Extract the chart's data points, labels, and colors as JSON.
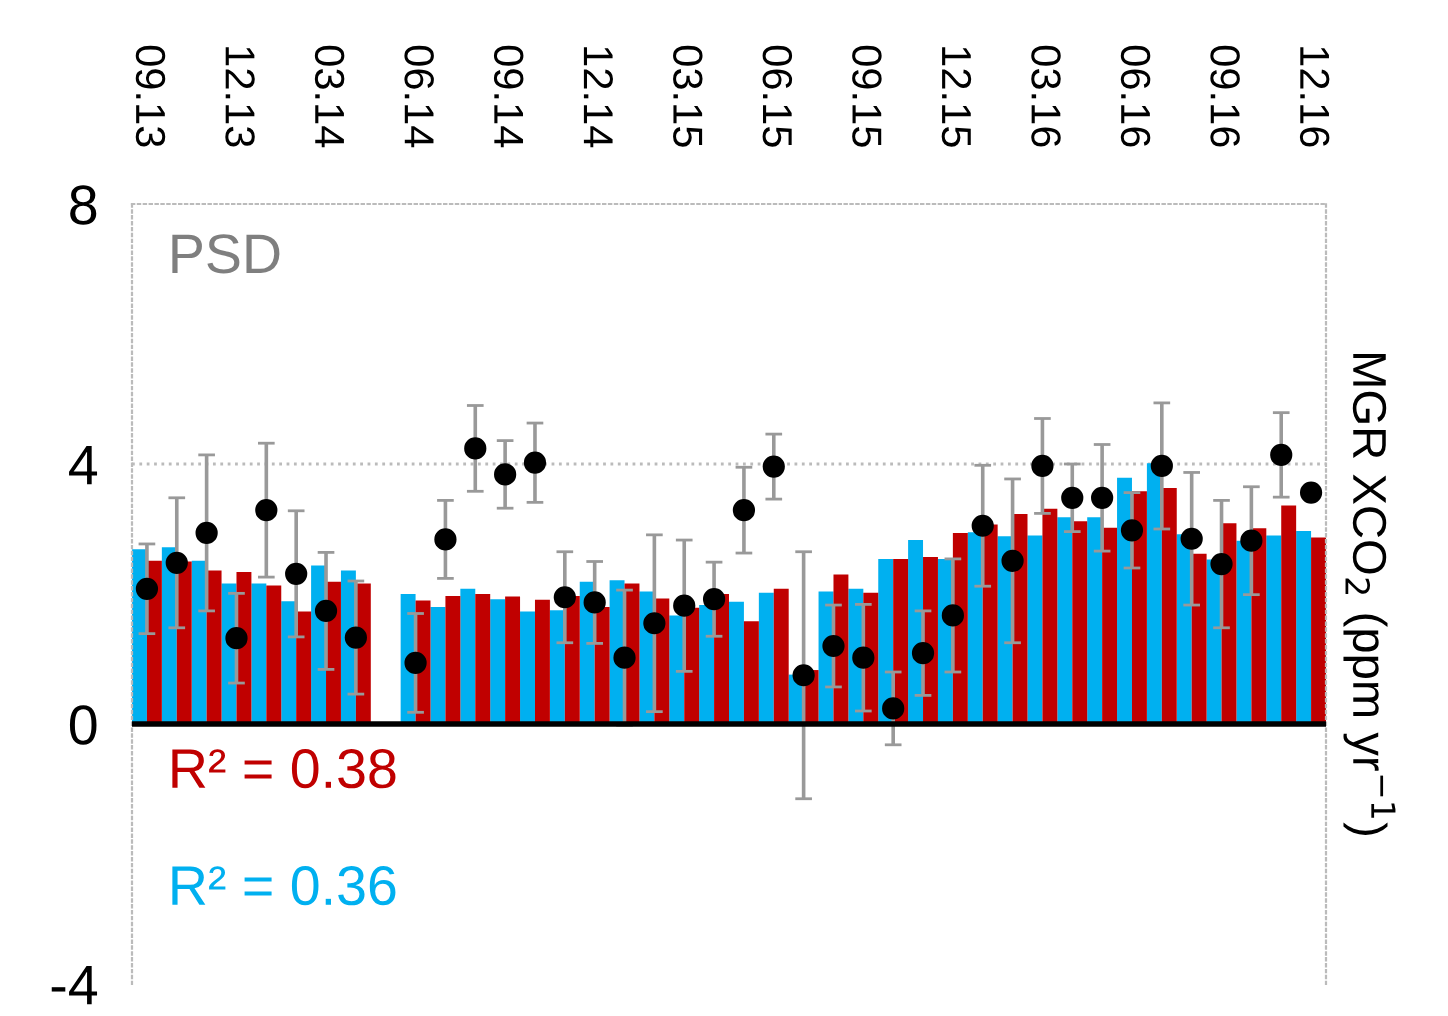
{
  "chart_data": {
    "type": "bar",
    "ylabel": "MGR XCO$_{2}$ (ppm yr$^{−1}$)",
    "categories": [
      "09.13",
      null,
      null,
      "12.13",
      null,
      null,
      "03.14",
      null,
      null,
      "06.14",
      null,
      null,
      "09.14",
      null,
      null,
      "12.14",
      null,
      null,
      "03.15",
      null,
      null,
      "06.15",
      null,
      null,
      "09.15",
      null,
      null,
      "12.15",
      null,
      null,
      "03.16",
      null,
      null,
      "06.16",
      null,
      null,
      "09.16",
      null,
      null,
      "12.16"
    ],
    "series": [
      {
        "color": "#00b0f0",
        "values": [
          2.69,
          2.72,
          2.51,
          2.16,
          2.16,
          1.89,
          2.44,
          2.36,
          null,
          2.0,
          1.8,
          2.08,
          1.92,
          1.73,
          1.75,
          2.19,
          2.21,
          2.04,
          1.67,
          1.83,
          1.88,
          2.02,
          0.76,
          2.04,
          2.08,
          2.54,
          2.83,
          2.54,
          2.95,
          2.89,
          2.9,
          3.18,
          3.18,
          3.79,
          4.01,
          2.92,
          2.53,
          2.82,
          2.9,
          2.97
        ]
      },
      {
        "color": "#c00000",
        "values": [
          2.51,
          2.5,
          2.36,
          2.34,
          2.13,
          1.73,
          2.19,
          2.16,
          null,
          1.9,
          1.97,
          2.0,
          1.96,
          1.91,
          1.97,
          1.8,
          2.16,
          1.93,
          1.79,
          2.0,
          1.58,
          2.08,
          0.83,
          2.3,
          2.02,
          2.54,
          2.57,
          2.94,
          3.07,
          3.23,
          3.31,
          3.12,
          3.02,
          3.58,
          3.63,
          2.62,
          3.09,
          3.01,
          3.36,
          2.87
        ]
      },
      {
        "type": "scatter",
        "color": "#000000",
        "marker": "circle",
        "values": [
          2.08,
          2.48,
          2.94,
          1.32,
          3.29,
          2.31,
          1.74,
          1.33,
          null,
          0.94,
          2.84,
          4.24,
          3.84,
          4.02,
          1.95,
          1.87,
          1.02,
          1.55,
          1.82,
          1.92,
          3.29,
          3.96,
          0.75,
          1.2,
          1.02,
          0.24,
          1.09,
          1.67,
          3.05,
          2.51,
          3.97,
          3.48,
          3.48,
          2.98,
          3.97,
          2.85,
          2.46,
          2.82,
          4.14,
          3.56
        ],
        "errors": [
          0.69,
          1.0,
          1.2,
          0.69,
          1.03,
          0.97,
          0.9,
          0.87,
          null,
          0.76,
          0.6,
          0.66,
          0.52,
          0.61,
          0.7,
          0.63,
          1.04,
          1.36,
          1.01,
          0.57,
          0.66,
          0.5,
          1.9,
          0.63,
          0.82,
          0.56,
          0.65,
          0.87,
          0.93,
          1.26,
          0.73,
          0.52,
          0.82,
          0.58,
          0.97,
          1.02,
          0.98,
          0.83,
          0.65,
          null
        ]
      }
    ],
    "ylim": [
      -4,
      8
    ],
    "yticks": [
      -4,
      0,
      4,
      8
    ],
    "ref_lines": [
      {
        "axis": "y",
        "value": 4,
        "color": "#bbbbbb",
        "line_style": "dotted"
      }
    ],
    "annotations": [
      "PSD",
      "R² = 0.38",
      "R² = 0.36"
    ]
  }
}
